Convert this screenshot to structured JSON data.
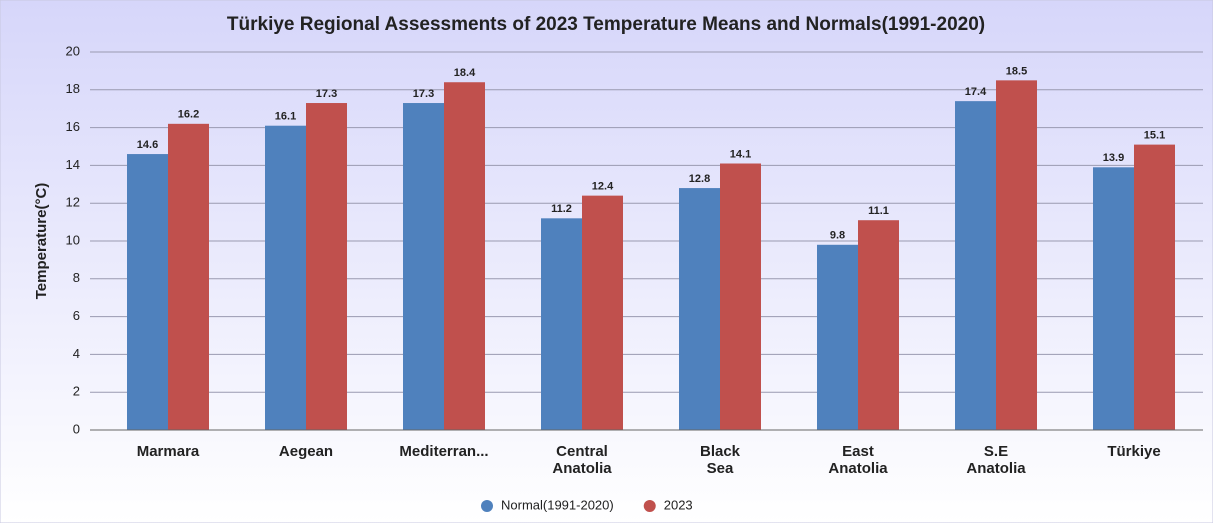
{
  "chart_data": {
    "type": "bar",
    "title": "Türkiye Regional Assessments of 2023 Temperature Means and Normals(1991-2020)",
    "y_label": "Temperature(°C)",
    "categories": [
      "Marmara",
      "Aegean",
      "Mediterran...",
      "Central Anatolia",
      "Black Sea",
      "East Anatolia",
      "S.E Anatolia",
      "Türkiye"
    ],
    "series": [
      {
        "name": "Normal(1991-2020)",
        "color": "#4f81bd",
        "values": [
          14.6,
          16.1,
          17.3,
          11.2,
          12.8,
          9.8,
          17.4,
          13.9
        ]
      },
      {
        "name": "2023",
        "color": "#c0504d",
        "values": [
          16.2,
          17.3,
          18.4,
          12.4,
          14.1,
          11.1,
          18.5,
          15.1
        ]
      }
    ],
    "ylim": [
      0,
      20
    ],
    "yticks": [
      0,
      2,
      4,
      6,
      8,
      10,
      12,
      14,
      16,
      18,
      20
    ],
    "grid": true,
    "legend": "bottom"
  }
}
